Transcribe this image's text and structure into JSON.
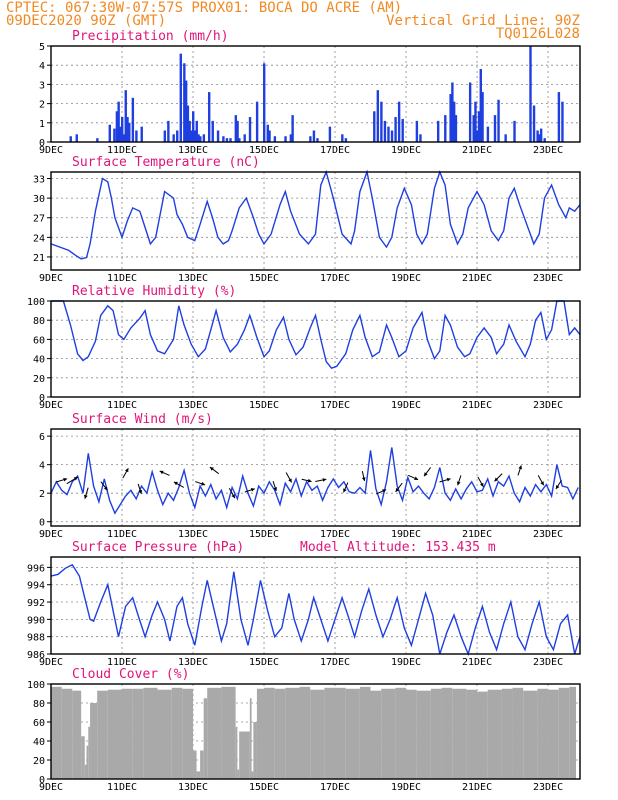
{
  "header": {
    "line1_left": "CPTEC:  067:30W-07:57S  PROX01: BOCA DO ACRE (AM)",
    "line2_left": "09DEC2020 90Z (GMT)",
    "line2_right": "Vertical Grid Line: 90Z",
    "line3_right": "TQ0126L028"
  },
  "colors": {
    "header": "#f08a24",
    "titles": "#e0157a",
    "series": "#1f3fe0",
    "cloud": "#a9a9a9"
  },
  "x_axis": {
    "tick_labels": [
      "9DEC",
      "11DEC",
      "13DEC",
      "15DEC",
      "17DEC",
      "19DEC",
      "21DEC",
      "23DEC"
    ],
    "tick_days": [
      0,
      2,
      4,
      6,
      8,
      10,
      12,
      14
    ],
    "range_days": [
      0,
      14.9
    ]
  },
  "chart_data": [
    {
      "id": "precip",
      "type": "bar",
      "title": "Precipitation (mm/h)",
      "ylim": [
        0,
        5
      ],
      "yticks": [
        0,
        1,
        2,
        3,
        4,
        5
      ],
      "x_days": [
        0.55,
        0.72,
        1.3,
        1.65,
        1.78,
        1.85,
        1.9,
        1.95,
        2.0,
        2.05,
        2.1,
        2.15,
        2.2,
        2.3,
        2.4,
        2.55,
        3.2,
        3.3,
        3.45,
        3.55,
        3.65,
        3.75,
        3.8,
        3.85,
        3.9,
        3.95,
        4.0,
        4.05,
        4.1,
        4.15,
        4.2,
        4.3,
        4.45,
        4.55,
        4.7,
        4.85,
        4.95,
        5.05,
        5.2,
        5.25,
        5.3,
        5.45,
        5.6,
        5.8,
        6.0,
        6.1,
        6.15,
        6.3,
        6.6,
        6.75,
        6.8,
        7.3,
        7.4,
        7.5,
        7.85,
        8.2,
        8.3,
        9.1,
        9.2,
        9.3,
        9.4,
        9.5,
        9.6,
        9.7,
        9.8,
        9.9,
        10.3,
        10.4,
        10.9,
        11.1,
        11.25,
        11.3,
        11.35,
        11.4,
        11.8,
        11.9,
        11.95,
        12.0,
        12.05,
        12.1,
        12.15,
        12.3,
        12.5,
        12.6,
        12.8,
        13.05,
        13.5,
        13.6,
        13.7,
        13.75,
        13.8,
        13.9,
        14.3,
        14.4
      ],
      "values": [
        0.3,
        0.4,
        0.2,
        0.9,
        0.7,
        1.6,
        2.1,
        0.8,
        1.3,
        0.4,
        2.7,
        1.3,
        1.0,
        2.3,
        0.6,
        0.8,
        0.6,
        1.1,
        0.4,
        0.6,
        4.6,
        4.1,
        3.2,
        1.9,
        1.1,
        0.6,
        1.6,
        0.6,
        1.1,
        0.4,
        0.3,
        0.4,
        2.6,
        1.1,
        0.6,
        0.3,
        0.2,
        0.2,
        1.4,
        1.1,
        0.2,
        0.4,
        1.3,
        2.1,
        4.1,
        0.9,
        0.6,
        0.3,
        0.3,
        0.4,
        1.4,
        0.3,
        0.6,
        0.2,
        0.8,
        0.4,
        0.2,
        1.6,
        2.7,
        2.1,
        1.1,
        0.8,
        0.6,
        1.3,
        2.1,
        1.2,
        1.1,
        0.4,
        1.1,
        1.4,
        2.5,
        3.1,
        2.1,
        1.4,
        3.1,
        1.4,
        2.1,
        0.6,
        1.6,
        3.8,
        2.6,
        0.8,
        1.4,
        2.2,
        0.4,
        1.1,
        5.0,
        1.9,
        0.6,
        0.4,
        0.7,
        0.2,
        2.6,
        2.1
      ]
    },
    {
      "id": "temp",
      "type": "line",
      "title": "Surface Temperature (nC)",
      "ylim": [
        19,
        34
      ],
      "yticks": [
        21,
        24,
        27,
        30,
        33
      ],
      "x_days": [
        0,
        0.5,
        0.7,
        0.85,
        1.0,
        1.1,
        1.25,
        1.45,
        1.6,
        1.7,
        1.8,
        2.0,
        2.15,
        2.3,
        2.5,
        2.65,
        2.8,
        2.95,
        3.2,
        3.45,
        3.55,
        3.7,
        3.85,
        4.05,
        4.2,
        4.4,
        4.55,
        4.7,
        4.85,
        5.0,
        5.1,
        5.3,
        5.5,
        5.7,
        5.85,
        6.0,
        6.2,
        6.45,
        6.6,
        6.75,
        7.0,
        7.25,
        7.45,
        7.6,
        7.75,
        7.95,
        8.2,
        8.45,
        8.55,
        8.7,
        8.9,
        9.05,
        9.25,
        9.45,
        9.6,
        9.75,
        9.95,
        10.15,
        10.3,
        10.45,
        10.6,
        10.8,
        10.95,
        11.1,
        11.25,
        11.45,
        11.6,
        11.75,
        12.0,
        12.2,
        12.4,
        12.6,
        12.75,
        12.9,
        13.05,
        13.2,
        13.5,
        13.6,
        13.75,
        13.9,
        14.1,
        14.3,
        14.5,
        14.6,
        14.75,
        14.9
      ],
      "values": [
        23.0,
        22.0,
        21.2,
        20.7,
        20.9,
        23.0,
        28.0,
        33.0,
        32.5,
        30.0,
        27.0,
        24.0,
        26.5,
        28.5,
        28.0,
        25.5,
        23.0,
        24.0,
        31.0,
        30.0,
        27.5,
        26.0,
        24.0,
        23.5,
        26.0,
        29.5,
        27.0,
        24.0,
        23.0,
        23.5,
        25.0,
        28.5,
        30.0,
        27.0,
        24.5,
        23.0,
        24.5,
        29.0,
        31.0,
        28.0,
        24.5,
        23.0,
        24.5,
        32.0,
        34.0,
        30.0,
        24.5,
        23.0,
        25.0,
        31.0,
        34.0,
        30.0,
        24.0,
        22.5,
        24.0,
        28.5,
        31.5,
        29.0,
        24.5,
        23.0,
        24.5,
        31.5,
        34.0,
        32.0,
        26.0,
        23.0,
        24.5,
        28.5,
        31.0,
        29.0,
        25.0,
        23.5,
        25.0,
        30.0,
        31.5,
        29.0,
        24.5,
        23.0,
        24.5,
        30.0,
        32.0,
        29.0,
        27.0,
        28.5,
        28.0,
        29.0
      ]
    },
    {
      "id": "rh",
      "type": "line",
      "title": "Relative Humidity (%)",
      "ylim": [
        0,
        100
      ],
      "yticks": [
        0,
        20,
        40,
        60,
        80,
        100
      ],
      "x_days": [
        0,
        0.35,
        0.55,
        0.75,
        0.9,
        1.05,
        1.25,
        1.4,
        1.6,
        1.75,
        1.9,
        2.05,
        2.25,
        2.5,
        2.65,
        2.8,
        3.0,
        3.2,
        3.45,
        3.6,
        3.75,
        3.95,
        4.15,
        4.35,
        4.5,
        4.65,
        4.85,
        5.05,
        5.25,
        5.45,
        5.6,
        5.8,
        6.0,
        6.15,
        6.35,
        6.55,
        6.7,
        6.9,
        7.1,
        7.3,
        7.45,
        7.6,
        7.75,
        7.9,
        8.05,
        8.3,
        8.5,
        8.7,
        8.85,
        9.05,
        9.25,
        9.45,
        9.6,
        9.8,
        10.0,
        10.2,
        10.45,
        10.6,
        10.8,
        10.95,
        11.1,
        11.25,
        11.45,
        11.65,
        11.8,
        12.0,
        12.2,
        12.4,
        12.55,
        12.75,
        12.9,
        13.1,
        13.35,
        13.5,
        13.65,
        13.8,
        13.95,
        14.1,
        14.25,
        14.45,
        14.6,
        14.75,
        14.9
      ],
      "values": [
        100,
        100,
        75,
        45,
        38,
        42,
        58,
        85,
        95,
        90,
        65,
        60,
        72,
        82,
        90,
        65,
        48,
        45,
        60,
        95,
        75,
        55,
        42,
        50,
        70,
        90,
        62,
        47,
        55,
        70,
        85,
        62,
        42,
        48,
        70,
        83,
        60,
        44,
        52,
        72,
        85,
        60,
        37,
        30,
        32,
        45,
        70,
        85,
        62,
        42,
        47,
        75,
        62,
        42,
        48,
        72,
        88,
        60,
        40,
        48,
        85,
        75,
        52,
        42,
        45,
        62,
        72,
        62,
        45,
        55,
        75,
        58,
        42,
        55,
        80,
        88,
        60,
        70,
        100,
        100,
        65,
        72,
        65
      ]
    },
    {
      "id": "wind",
      "type": "line",
      "title": "Surface Wind (m/s)",
      "ylim": [
        -0.3,
        6.5
      ],
      "yticks": [
        0,
        2,
        4,
        6
      ],
      "x_days": [
        0,
        0.15,
        0.3,
        0.45,
        0.6,
        0.75,
        0.9,
        1.05,
        1.2,
        1.35,
        1.5,
        1.65,
        1.8,
        1.95,
        2.1,
        2.25,
        2.4,
        2.55,
        2.7,
        2.85,
        3.0,
        3.15,
        3.3,
        3.45,
        3.6,
        3.75,
        3.9,
        4.05,
        4.2,
        4.35,
        4.5,
        4.65,
        4.8,
        4.95,
        5.1,
        5.25,
        5.4,
        5.55,
        5.7,
        5.85,
        6.0,
        6.15,
        6.3,
        6.45,
        6.6,
        6.75,
        6.9,
        7.05,
        7.2,
        7.35,
        7.5,
        7.65,
        7.8,
        7.95,
        8.1,
        8.25,
        8.4,
        8.55,
        8.7,
        8.85,
        9.0,
        9.15,
        9.3,
        9.45,
        9.6,
        9.75,
        9.9,
        10.05,
        10.2,
        10.35,
        10.5,
        10.65,
        10.8,
        10.95,
        11.1,
        11.25,
        11.4,
        11.55,
        11.7,
        11.85,
        12.0,
        12.15,
        12.3,
        12.45,
        12.6,
        12.75,
        12.9,
        13.05,
        13.2,
        13.35,
        13.5,
        13.65,
        13.8,
        13.95,
        14.1,
        14.25,
        14.4,
        14.55,
        14.7,
        14.85
      ],
      "values": [
        2.0,
        2.8,
        2.2,
        1.9,
        2.8,
        3.2,
        2.0,
        4.8,
        2.5,
        1.4,
        3.0,
        1.5,
        0.6,
        1.2,
        1.8,
        2.2,
        1.6,
        2.5,
        2.0,
        3.5,
        2.2,
        1.2,
        2.0,
        1.5,
        2.4,
        3.6,
        2.0,
        1.0,
        2.5,
        1.8,
        2.6,
        1.6,
        2.2,
        1.0,
        2.4,
        1.6,
        3.2,
        2.0,
        1.1,
        2.5,
        2.0,
        2.8,
        2.2,
        1.2,
        2.7,
        2.1,
        3.0,
        1.8,
        2.8,
        2.2,
        2.5,
        1.5,
        2.4,
        3.0,
        2.4,
        2.8,
        2.1,
        2.0,
        2.4,
        2.0,
        5.0,
        2.3,
        1.2,
        2.8,
        5.2,
        2.5,
        1.5,
        3.1,
        2.1,
        2.5,
        2.0,
        1.6,
        2.4,
        3.8,
        2.0,
        1.5,
        2.3,
        1.6,
        2.3,
        2.8,
        2.1,
        2.2,
        3.0,
        1.8,
        2.8,
        2.5,
        3.2,
        2.0,
        1.4,
        2.4,
        1.8,
        2.6,
        2.1,
        2.6,
        1.8,
        4.0,
        2.5,
        2.4,
        1.6,
        2.4
      ]
    },
    {
      "id": "pressure",
      "type": "line",
      "title": "Surface Pressure (hPa)",
      "annotation": "Model Altitude: 153.435 m",
      "ylim": [
        986,
        997.2
      ],
      "yticks": [
        986,
        988,
        990,
        992,
        994,
        996
      ],
      "x_days": [
        0,
        0.2,
        0.4,
        0.6,
        0.8,
        0.95,
        1.1,
        1.2,
        1.4,
        1.6,
        1.75,
        1.9,
        2.1,
        2.3,
        2.45,
        2.65,
        2.85,
        3.0,
        3.2,
        3.35,
        3.55,
        3.7,
        3.85,
        4.05,
        4.25,
        4.4,
        4.6,
        4.8,
        4.95,
        5.15,
        5.35,
        5.55,
        5.7,
        5.9,
        6.1,
        6.3,
        6.5,
        6.7,
        6.85,
        7.05,
        7.25,
        7.4,
        7.6,
        7.8,
        8.0,
        8.2,
        8.4,
        8.55,
        8.75,
        8.95,
        9.15,
        9.35,
        9.55,
        9.75,
        9.95,
        10.15,
        10.35,
        10.55,
        10.75,
        10.95,
        11.15,
        11.35,
        11.55,
        11.75,
        11.95,
        12.15,
        12.35,
        12.55,
        12.75,
        12.95,
        13.15,
        13.35,
        13.55,
        13.75,
        13.95,
        14.15,
        14.35,
        14.55,
        14.75,
        14.9
      ],
      "values": [
        995.0,
        995.2,
        995.9,
        996.3,
        995.0,
        992.5,
        990.0,
        989.8,
        992.0,
        994.0,
        991.0,
        988.0,
        991.5,
        992.5,
        990.5,
        988.0,
        990.5,
        992.0,
        990.0,
        987.5,
        991.5,
        992.5,
        989.5,
        987.0,
        991.5,
        994.5,
        991.0,
        987.5,
        989.5,
        995.5,
        990.0,
        987.0,
        990.0,
        994.5,
        991.0,
        988.0,
        989.0,
        993.0,
        990.0,
        987.5,
        990.0,
        992.5,
        990.0,
        987.5,
        990.0,
        992.5,
        990.0,
        988.0,
        991.0,
        993.5,
        990.5,
        988.0,
        990.0,
        992.5,
        989.0,
        987.0,
        990.0,
        993.0,
        990.5,
        986.0,
        988.5,
        990.5,
        988.0,
        986.0,
        989.0,
        991.5,
        988.5,
        986.5,
        989.5,
        992.0,
        988.0,
        986.5,
        989.5,
        992.0,
        988.0,
        986.5,
        989.5,
        990.5,
        986.0,
        988.0
      ]
    },
    {
      "id": "cloud",
      "type": "bar",
      "title": "Cloud Cover (%)",
      "ylim": [
        0,
        100
      ],
      "yticks": [
        0,
        20,
        40,
        60,
        80,
        100
      ],
      "x_days": [
        0,
        0.3,
        0.6,
        0.85,
        0.95,
        1.0,
        1.05,
        1.1,
        1.3,
        1.6,
        2.0,
        2.3,
        2.6,
        3.0,
        3.4,
        3.7,
        4.0,
        4.1,
        4.2,
        4.3,
        4.4,
        4.8,
        5.2,
        5.25,
        5.3,
        5.6,
        5.65,
        5.7,
        5.8,
        6.0,
        6.3,
        6.6,
        7.0,
        7.3,
        7.7,
        8.0,
        8.3,
        8.7,
        9.0,
        9.3,
        9.7,
        10.0,
        10.3,
        10.7,
        11.0,
        11.3,
        11.7,
        12.0,
        12.3,
        12.7,
        13.0,
        13.3,
        13.7,
        14.0,
        14.3,
        14.6
      ],
      "values": [
        97,
        95,
        93,
        45,
        15,
        35,
        55,
        80,
        93,
        94,
        95,
        95,
        96,
        94,
        96,
        95,
        30,
        8,
        30,
        85,
        96,
        97,
        55,
        10,
        50,
        85,
        8,
        60,
        95,
        96,
        95,
        96,
        97,
        94,
        96,
        96,
        95,
        97,
        93,
        95,
        96,
        94,
        93,
        95,
        96,
        95,
        94,
        92,
        94,
        95,
        96,
        93,
        95,
        94,
        96,
        97
      ]
    }
  ]
}
